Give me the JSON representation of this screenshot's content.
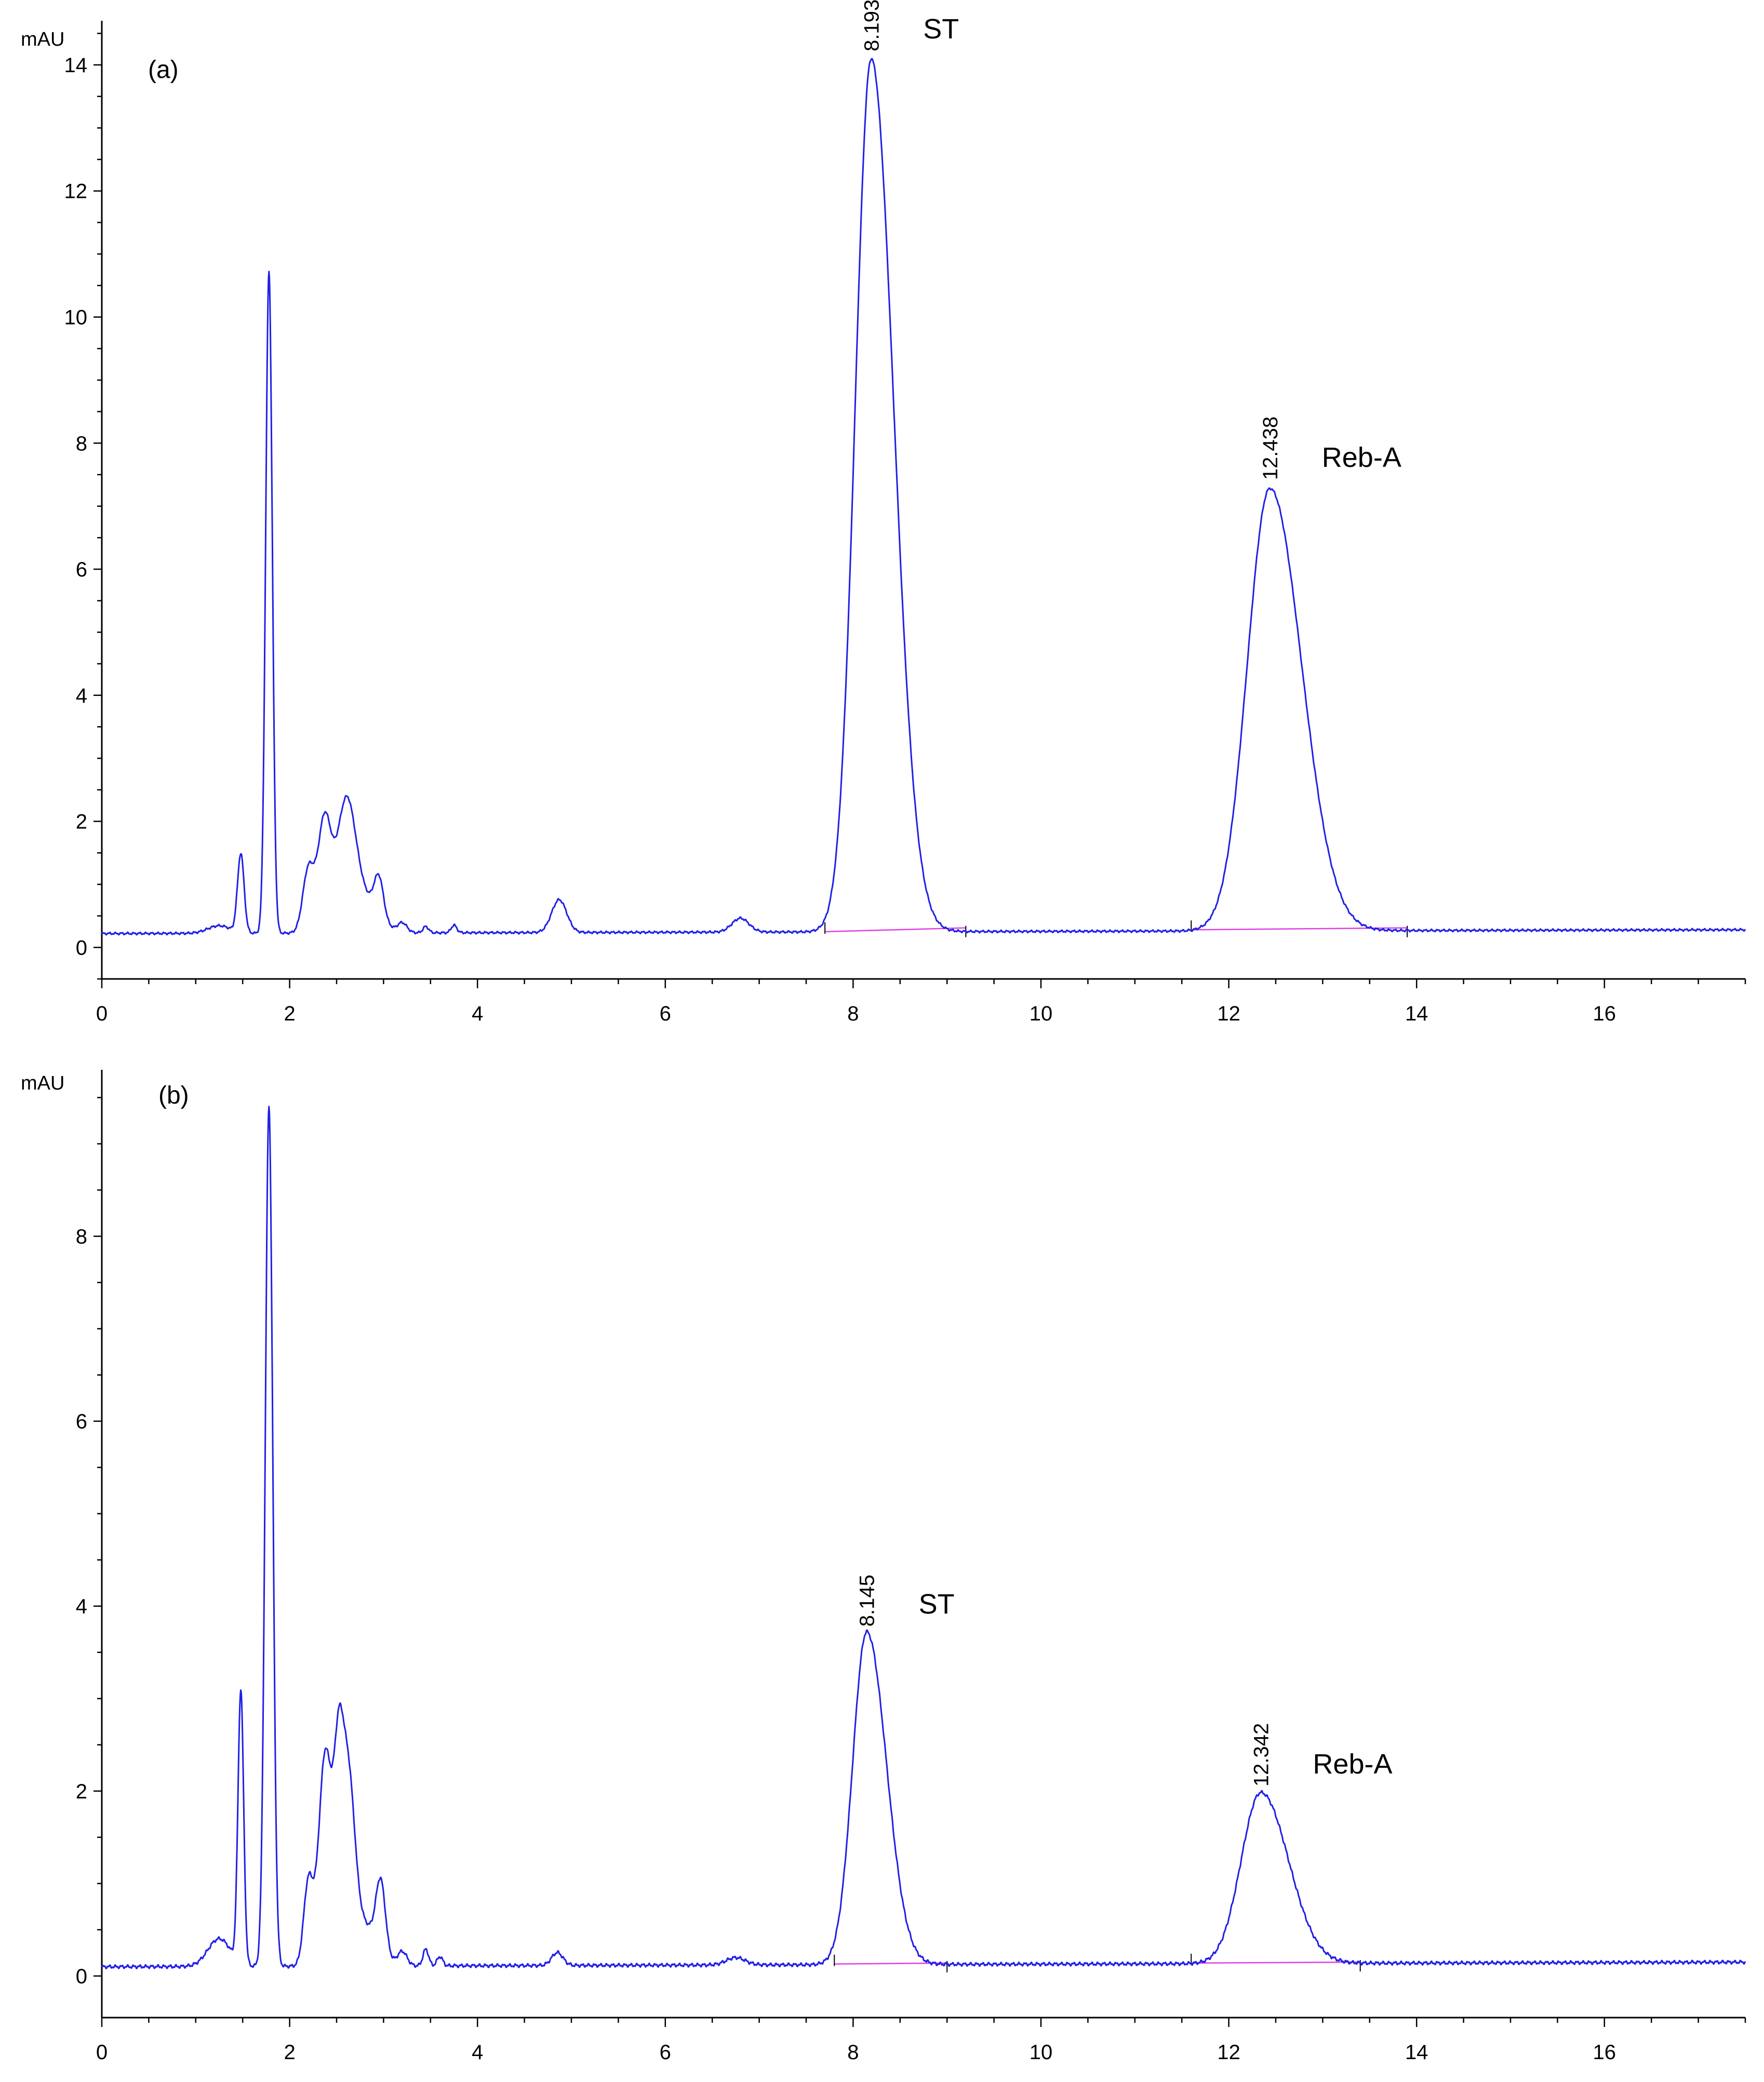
{
  "chart_data": [
    {
      "type": "line",
      "panel_label": "(a)",
      "ylabel": "mAU",
      "xlabel": "",
      "xlim": [
        0,
        17.5
      ],
      "ylim": [
        -0.5,
        14.7
      ],
      "xticks": [
        0,
        2,
        4,
        6,
        8,
        10,
        12,
        14,
        16
      ],
      "yticks": [
        0,
        2,
        4,
        6,
        8,
        10,
        12,
        14
      ],
      "grid": false,
      "colors": {
        "trace": "#2020e6",
        "baseline": "#e040e0"
      },
      "baseline": 0.22,
      "baseline_drift": 0.06,
      "peaks": [
        {
          "rt": 1.25,
          "height": 0.12,
          "width": 0.12
        },
        {
          "rt": 1.48,
          "height": 1.25,
          "width": 0.035
        },
        {
          "rt": 1.78,
          "height": 10.5,
          "width": 0.035
        },
        {
          "rt": 2.2,
          "height": 1.0,
          "width": 0.06
        },
        {
          "rt": 2.37,
          "height": 1.75,
          "width": 0.07
        },
        {
          "rt": 2.6,
          "height": 1.95,
          "width": 0.1
        },
        {
          "rt": 2.8,
          "height": 0.5,
          "width": 0.15
        },
        {
          "rt": 2.95,
          "height": 0.62,
          "width": 0.05
        },
        {
          "rt": 3.2,
          "height": 0.15,
          "width": 0.05
        },
        {
          "rt": 3.45,
          "height": 0.1,
          "width": 0.03
        },
        {
          "rt": 3.75,
          "height": 0.12,
          "width": 0.03
        },
        {
          "rt": 4.87,
          "height": 0.52,
          "width": 0.08
        },
        {
          "rt": 6.8,
          "height": 0.22,
          "width": 0.09
        },
        {
          "rt": 8.193,
          "height": 13.85,
          "width": 0.17,
          "tail": 1.4
        },
        {
          "rt": 12.438,
          "height": 7.02,
          "width": 0.24,
          "tail": 1.4
        }
      ],
      "annotations": [
        {
          "rt_label": "8.193",
          "name": "ST",
          "x": 8.193,
          "y": 14.1
        },
        {
          "rt_label": "12.438",
          "name": "Reb-A",
          "x": 12.438,
          "y": 7.3
        }
      ],
      "integration_baselines": [
        {
          "x0": 7.7,
          "x1": 9.2,
          "y0": 0.25,
          "y1": 0.31
        },
        {
          "x0": 11.6,
          "x1": 13.9,
          "y0": 0.28,
          "y1": 0.31
        }
      ]
    },
    {
      "type": "line",
      "panel_label": "(b)",
      "ylabel": "mAU",
      "xlabel": "",
      "xlim": [
        0,
        17.5
      ],
      "ylim": [
        -0.45,
        9.8
      ],
      "xticks": [
        0,
        2,
        4,
        6,
        8,
        10,
        12,
        14,
        16
      ],
      "yticks": [
        0,
        2,
        4,
        6,
        8
      ],
      "grid": false,
      "colors": {
        "trace": "#2020e6",
        "baseline": "#e040e0"
      },
      "baseline": 0.1,
      "baseline_drift": 0.05,
      "peaks": [
        {
          "rt": 1.25,
          "height": 0.3,
          "width": 0.12
        },
        {
          "rt": 1.48,
          "height": 2.95,
          "width": 0.03
        },
        {
          "rt": 1.78,
          "height": 9.3,
          "width": 0.04
        },
        {
          "rt": 2.2,
          "height": 0.9,
          "width": 0.05
        },
        {
          "rt": 2.38,
          "height": 2.3,
          "width": 0.07
        },
        {
          "rt": 2.52,
          "height": 1.7,
          "width": 0.05
        },
        {
          "rt": 2.62,
          "height": 1.85,
          "width": 0.07
        },
        {
          "rt": 2.78,
          "height": 0.45,
          "width": 0.15
        },
        {
          "rt": 2.97,
          "height": 0.75,
          "width": 0.05
        },
        {
          "rt": 3.2,
          "height": 0.15,
          "width": 0.05
        },
        {
          "rt": 3.45,
          "height": 0.18,
          "width": 0.03
        },
        {
          "rt": 3.6,
          "height": 0.1,
          "width": 0.03
        },
        {
          "rt": 4.85,
          "height": 0.14,
          "width": 0.06
        },
        {
          "rt": 6.75,
          "height": 0.08,
          "width": 0.1
        },
        {
          "rt": 8.145,
          "height": 3.6,
          "width": 0.15,
          "tail": 1.4
        },
        {
          "rt": 12.342,
          "height": 1.85,
          "width": 0.21,
          "tail": 1.4
        }
      ],
      "annotations": [
        {
          "rt_label": "8.145",
          "name": "ST",
          "x": 8.145,
          "y": 3.7
        },
        {
          "rt_label": "12.342",
          "name": "Reb-A",
          "x": 12.342,
          "y": 1.97
        }
      ],
      "integration_baselines": [
        {
          "x0": 7.8,
          "x1": 9.0,
          "y0": 0.13,
          "y1": 0.14
        },
        {
          "x0": 11.6,
          "x1": 13.4,
          "y0": 0.14,
          "y1": 0.15
        }
      ]
    }
  ]
}
